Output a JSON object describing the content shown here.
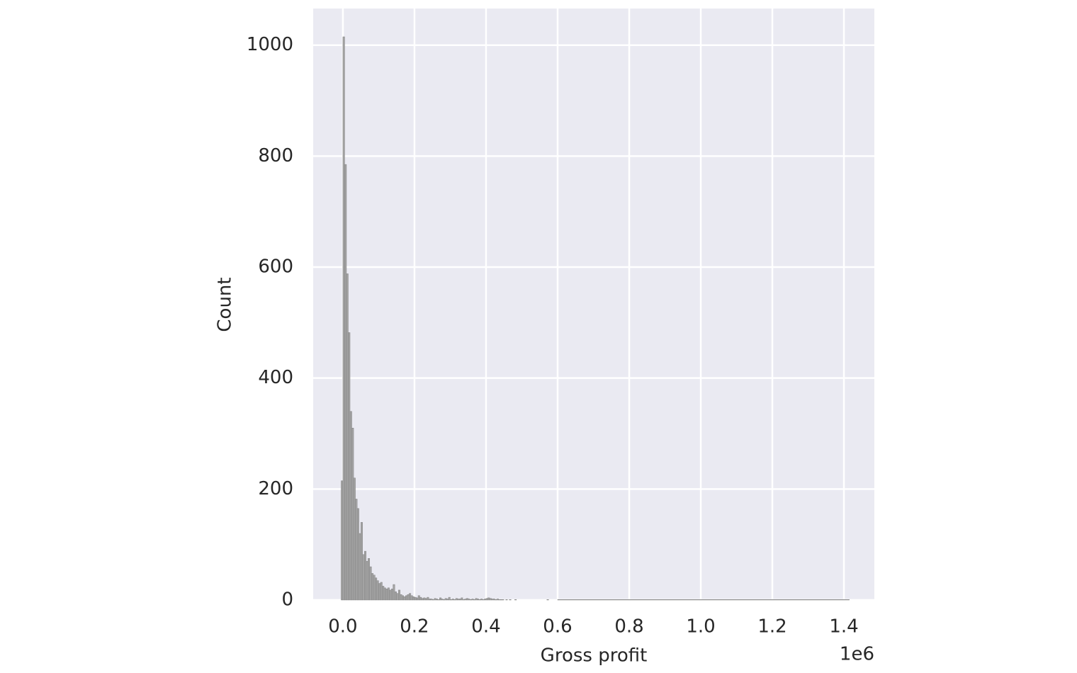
{
  "chart_data": {
    "type": "histogram",
    "x_label": "Gross profit",
    "y_label": "Count",
    "x_offset_label": "1e6",
    "bins": [
      -10000,
      -5000,
      0,
      5000,
      10000,
      15000,
      20000,
      25000,
      30000,
      35000,
      40000,
      45000,
      50000,
      55000,
      60000,
      65000,
      70000,
      75000,
      80000,
      85000,
      90000,
      95000,
      100000,
      105000,
      110000,
      115000,
      120000,
      125000,
      130000,
      135000,
      140000,
      145000,
      150000,
      155000,
      160000,
      165000,
      170000,
      175000,
      180000,
      185000,
      190000,
      195000,
      200000,
      205000,
      210000,
      215000,
      220000,
      225000,
      230000,
      235000,
      240000,
      245000,
      250000,
      255000,
      260000,
      265000,
      270000,
      275000,
      280000,
      285000,
      290000,
      295000,
      300000,
      305000,
      310000,
      315000,
      320000,
      325000,
      330000,
      335000,
      340000,
      345000,
      350000,
      355000,
      360000,
      365000,
      370000,
      375000,
      380000,
      385000,
      390000,
      395000,
      400000,
      405000,
      410000,
      415000,
      420000,
      425000,
      430000,
      435000,
      440000,
      445000,
      450000,
      455000,
      460000,
      465000,
      470000,
      475000,
      480000,
      485000,
      490000,
      495000,
      500000,
      505000,
      510000,
      515000,
      520000,
      525000,
      530000,
      535000,
      540000,
      545000,
      550000,
      555000,
      560000,
      565000,
      570000,
      575000,
      580000,
      585000,
      590000,
      595000,
      600000,
      1415000
    ],
    "values": [
      0,
      215,
      1015,
      785,
      588,
      482,
      340,
      310,
      220,
      182,
      165,
      120,
      140,
      82,
      88,
      70,
      75,
      60,
      48,
      45,
      40,
      35,
      30,
      32,
      25,
      22,
      20,
      22,
      18,
      20,
      28,
      15,
      12,
      18,
      10,
      8,
      6,
      8,
      10,
      12,
      8,
      6,
      5,
      4,
      8,
      5,
      3,
      4,
      3,
      5,
      2,
      2,
      1,
      3,
      2,
      1,
      4,
      2,
      1,
      3,
      2,
      5,
      1,
      2,
      1,
      3,
      2,
      2,
      4,
      1,
      2,
      3,
      2,
      1,
      2,
      1,
      3,
      2,
      1,
      2,
      1,
      2,
      3,
      4,
      3,
      2,
      2,
      1,
      2,
      1,
      1,
      1,
      0,
      1,
      0,
      1,
      0,
      0,
      1,
      0,
      0,
      0,
      0,
      0,
      0,
      0,
      0,
      0,
      0,
      0,
      0,
      0,
      0,
      0,
      0,
      0,
      1,
      0,
      0,
      0,
      0,
      0,
      1
    ],
    "color": "#a3a3a3",
    "edge_color": "#7a7a7a",
    "xlim": [
      -83000,
      1485000
    ],
    "ylim": [
      0,
      1066
    ],
    "xticks": [
      {
        "value": 0,
        "label": "0.0"
      },
      {
        "value": 200000,
        "label": "0.2"
      },
      {
        "value": 400000,
        "label": "0.4"
      },
      {
        "value": 600000,
        "label": "0.6"
      },
      {
        "value": 800000,
        "label": "0.8"
      },
      {
        "value": 1000000,
        "label": "1.0"
      },
      {
        "value": 1200000,
        "label": "1.2"
      },
      {
        "value": 1400000,
        "label": "1.4"
      }
    ],
    "yticks": [
      0,
      200,
      400,
      600,
      800,
      1000
    ],
    "grid": true
  }
}
